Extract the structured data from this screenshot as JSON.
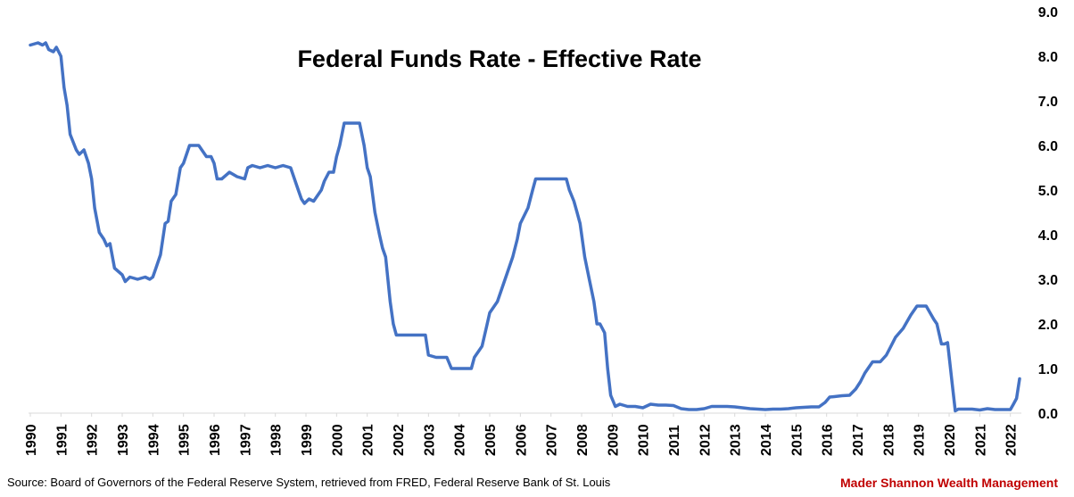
{
  "chart_data": {
    "type": "line",
    "title": "Federal Funds Rate - Effective Rate",
    "xlabel": "",
    "ylabel": "",
    "xlim": [
      1990,
      2022.3
    ],
    "ylim": [
      0,
      9
    ],
    "y_ticks": [
      "0.0",
      "1.0",
      "2.0",
      "3.0",
      "4.0",
      "5.0",
      "6.0",
      "7.0",
      "8.0",
      "9.0"
    ],
    "x_ticks": [
      "1990",
      "1991",
      "1992",
      "1993",
      "1994",
      "1995",
      "1996",
      "1997",
      "1998",
      "1999",
      "2000",
      "2001",
      "2002",
      "2003",
      "2004",
      "2005",
      "2006",
      "2007",
      "2008",
      "2009",
      "2010",
      "2011",
      "2012",
      "2013",
      "2014",
      "2015",
      "2016",
      "2017",
      "2018",
      "2019",
      "2020",
      "2021",
      "2022"
    ],
    "y_axis_position": "right",
    "grid": false,
    "legend": "none",
    "line_color": "#4472C4",
    "series": [
      {
        "x": [
          1990.0,
          1990.25,
          1990.4,
          1990.5,
          1990.6,
          1990.75,
          1990.85,
          1991.0,
          1991.1,
          1991.2,
          1991.3,
          1991.5,
          1991.6,
          1991.75,
          1991.9,
          1992.0,
          1992.1,
          1992.25,
          1992.4,
          1992.5,
          1992.6,
          1992.75,
          1993.0,
          1993.1,
          1993.25,
          1993.5,
          1993.75,
          1993.9,
          1994.0,
          1994.1,
          1994.25,
          1994.4,
          1994.5,
          1994.6,
          1994.75,
          1994.9,
          1995.0,
          1995.2,
          1995.5,
          1995.75,
          1995.9,
          1996.0,
          1996.1,
          1996.25,
          1996.5,
          1996.75,
          1997.0,
          1997.1,
          1997.25,
          1997.5,
          1997.75,
          1998.0,
          1998.25,
          1998.5,
          1998.75,
          1998.85,
          1998.95,
          1999.1,
          1999.25,
          1999.5,
          1999.6,
          1999.75,
          1999.9,
          2000.0,
          2000.1,
          2000.25,
          2000.4,
          2000.5,
          2000.75,
          2000.9,
          2001.0,
          2001.1,
          2001.25,
          2001.4,
          2001.5,
          2001.6,
          2001.75,
          2001.85,
          2001.95,
          2002.1,
          2002.5,
          2002.75,
          2002.9,
          2003.0,
          2003.25,
          2003.5,
          2003.6,
          2003.75,
          2004.0,
          2004.25,
          2004.4,
          2004.5,
          2004.75,
          2004.9,
          2005.0,
          2005.25,
          2005.5,
          2005.75,
          2005.9,
          2006.0,
          2006.25,
          2006.4,
          2006.5,
          2006.75,
          2007.0,
          2007.25,
          2007.5,
          2007.6,
          2007.75,
          2007.85,
          2007.95,
          2008.1,
          2008.25,
          2008.4,
          2008.5,
          2008.6,
          2008.75,
          2008.85,
          2008.95,
          2009.1,
          2009.25,
          2009.5,
          2009.75,
          2010.0,
          2010.25,
          2010.5,
          2010.75,
          2011.0,
          2011.25,
          2011.5,
          2011.75,
          2012.0,
          2012.25,
          2012.5,
          2012.75,
          2013.0,
          2013.25,
          2013.5,
          2013.75,
          2014.0,
          2014.25,
          2014.5,
          2014.75,
          2015.0,
          2015.25,
          2015.5,
          2015.75,
          2015.95,
          2016.1,
          2016.25,
          2016.5,
          2016.75,
          2016.95,
          2017.1,
          2017.25,
          2017.5,
          2017.75,
          2017.95,
          2018.1,
          2018.25,
          2018.5,
          2018.75,
          2018.95,
          2019.1,
          2019.25,
          2019.5,
          2019.6,
          2019.75,
          2019.85,
          2019.95,
          2020.1,
          2020.2,
          2020.3,
          2020.5,
          2020.75,
          2021.0,
          2021.25,
          2021.5,
          2021.75,
          2022.0,
          2022.1,
          2022.2,
          2022.3
        ],
        "values": [
          8.25,
          8.3,
          8.25,
          8.3,
          8.15,
          8.1,
          8.2,
          8.0,
          7.3,
          6.9,
          6.25,
          5.9,
          5.8,
          5.9,
          5.6,
          5.25,
          4.6,
          4.05,
          3.9,
          3.75,
          3.8,
          3.25,
          3.1,
          2.95,
          3.05,
          3.0,
          3.05,
          3.0,
          3.05,
          3.25,
          3.55,
          4.25,
          4.3,
          4.75,
          4.9,
          5.5,
          5.6,
          6.0,
          6.0,
          5.75,
          5.75,
          5.6,
          5.25,
          5.25,
          5.4,
          5.3,
          5.25,
          5.5,
          5.55,
          5.5,
          5.55,
          5.5,
          5.55,
          5.5,
          5.0,
          4.8,
          4.7,
          4.8,
          4.75,
          5.0,
          5.2,
          5.4,
          5.4,
          5.75,
          6.0,
          6.5,
          6.5,
          6.5,
          6.5,
          6.0,
          5.5,
          5.3,
          4.5,
          4.0,
          3.7,
          3.5,
          2.5,
          2.0,
          1.75,
          1.75,
          1.75,
          1.75,
          1.75,
          1.3,
          1.25,
          1.25,
          1.25,
          1.0,
          1.0,
          1.0,
          1.0,
          1.25,
          1.5,
          1.95,
          2.25,
          2.5,
          3.0,
          3.5,
          3.9,
          4.25,
          4.6,
          5.0,
          5.25,
          5.25,
          5.25,
          5.25,
          5.25,
          5.0,
          4.75,
          4.5,
          4.25,
          3.5,
          3.0,
          2.5,
          2.0,
          2.0,
          1.8,
          1.0,
          0.4,
          0.15,
          0.2,
          0.15,
          0.15,
          0.12,
          0.2,
          0.18,
          0.18,
          0.17,
          0.1,
          0.08,
          0.08,
          0.1,
          0.15,
          0.15,
          0.15,
          0.14,
          0.12,
          0.1,
          0.09,
          0.08,
          0.09,
          0.09,
          0.1,
          0.12,
          0.13,
          0.14,
          0.14,
          0.24,
          0.36,
          0.37,
          0.39,
          0.4,
          0.54,
          0.7,
          0.9,
          1.15,
          1.15,
          1.3,
          1.5,
          1.7,
          1.9,
          2.2,
          2.4,
          2.4,
          2.4,
          2.1,
          2.0,
          1.55,
          1.55,
          1.58,
          0.65,
          0.05,
          0.09,
          0.09,
          0.09,
          0.07,
          0.1,
          0.08,
          0.08,
          0.08,
          0.2,
          0.33,
          0.77
        ]
      }
    ]
  },
  "footer": {
    "source": "Source: Board of Governors of the Federal Reserve System, retrieved from FRED, Federal Reserve Bank of St. Louis",
    "brand": "Mader Shannon Wealth Management",
    "brand_color": "#C00000"
  }
}
